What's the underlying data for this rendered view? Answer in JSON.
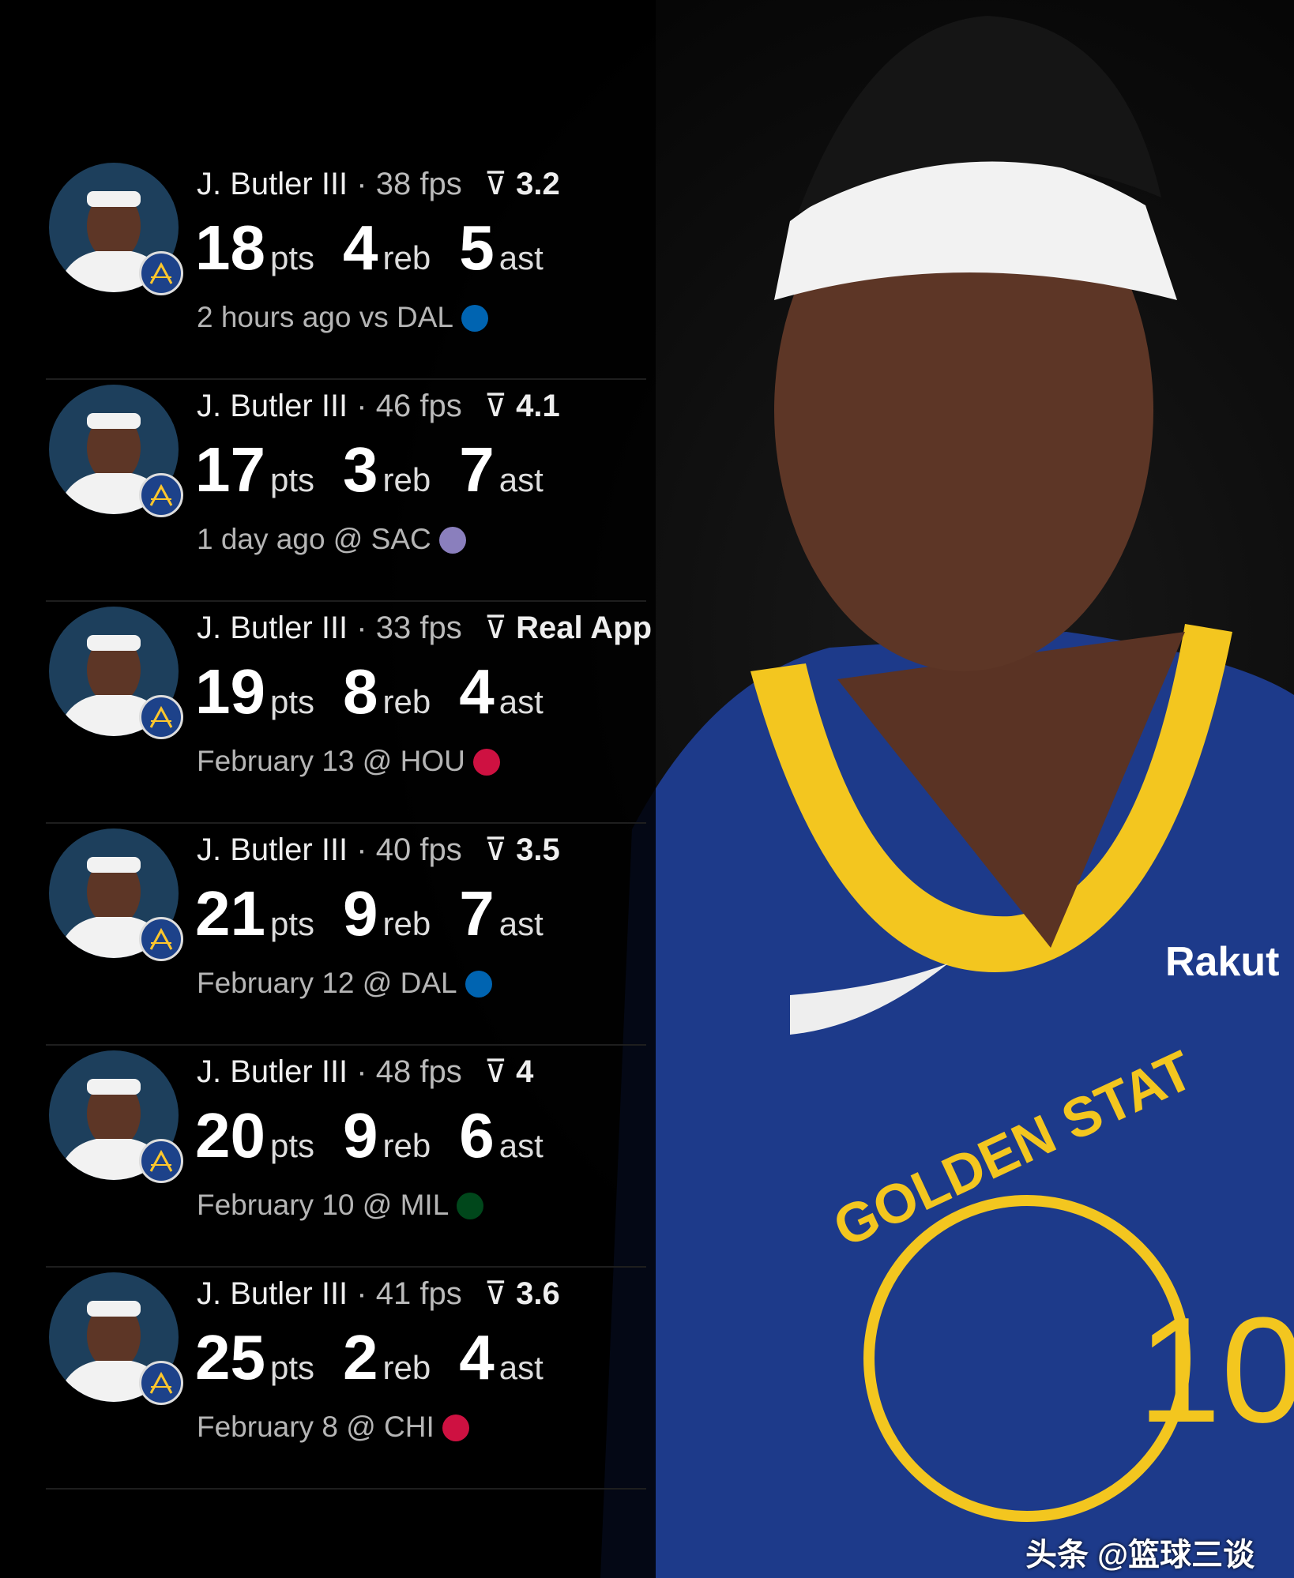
{
  "colors": {
    "background": "#000000",
    "jersey_blue": "#1d428a",
    "jersey_yellow": "#ffc72c"
  },
  "rows": [
    {
      "name": "J. Butler III",
      "fps": "38 fps",
      "rating": "3.2",
      "pts": "18",
      "reb": "4",
      "ast": "5",
      "meta": "2 hours ago vs DAL",
      "team_color": "#0064b1"
    },
    {
      "name": "J. Butler III",
      "fps": "46 fps",
      "rating": "4.1",
      "pts": "17",
      "reb": "3",
      "ast": "7",
      "meta": "1 day ago @ SAC",
      "team_color": "#8a7fbd"
    },
    {
      "name": "J. Butler III",
      "fps": "33 fps",
      "rating": "Real App",
      "pts": "19",
      "reb": "8",
      "ast": "4",
      "meta": "February 13 @ HOU",
      "team_color": "#ce1141"
    },
    {
      "name": "J. Butler III",
      "fps": "40 fps",
      "rating": "3.5",
      "pts": "21",
      "reb": "9",
      "ast": "7",
      "meta": "February 12 @ DAL",
      "team_color": "#0064b1"
    },
    {
      "name": "J. Butler III",
      "fps": "48 fps",
      "rating": "4",
      "pts": "20",
      "reb": "9",
      "ast": "6",
      "meta": "February 10 @ MIL",
      "team_color": "#00471b"
    },
    {
      "name": "J. Butler III",
      "fps": "41 fps",
      "rating": "3.6",
      "pts": "25",
      "reb": "2",
      "ast": "4",
      "meta": "February 8 @ CHI",
      "team_color": "#ce1141"
    }
  ],
  "units": {
    "pts": "pts",
    "reb": "reb",
    "ast": "ast"
  },
  "separator": "·",
  "jersey": {
    "sponsor": "Rakut",
    "text": "GOLDEN STAT",
    "number": "10"
  },
  "watermark": "头条 @篮球三谈"
}
